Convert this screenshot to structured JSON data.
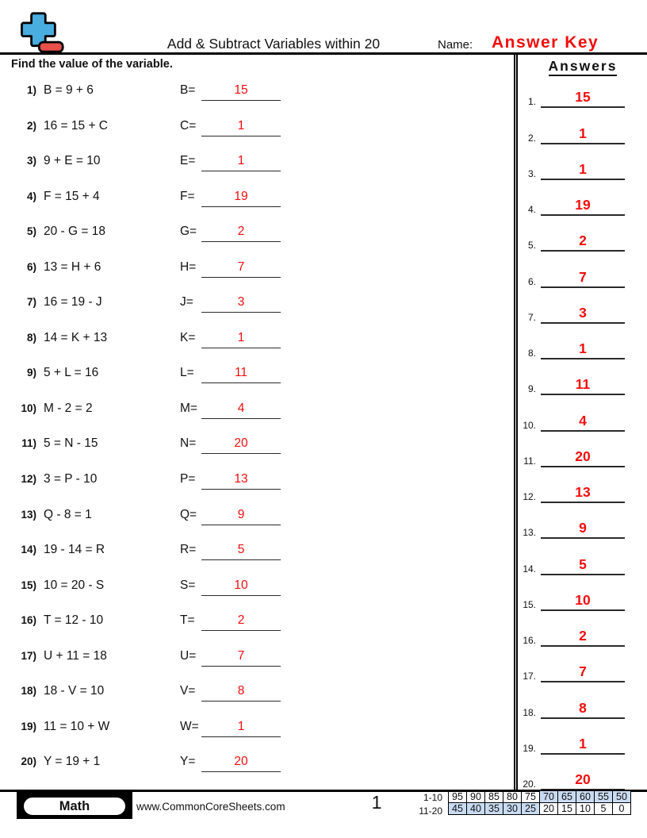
{
  "colors": {
    "answer_red": "#f20d0d",
    "table_shade": "#c8dbf2",
    "logo_blue": "#49ade0",
    "logo_red": "#e8504a"
  },
  "header": {
    "title": "Add & Subtract Variables within 20",
    "name_label": "Name:",
    "answer_key_text": "Answer Key"
  },
  "instruction": "Find the value of the variable.",
  "problems": [
    {
      "num": "1)",
      "equation": "B = 9 + 6",
      "var_label": "B=",
      "answer": "15"
    },
    {
      "num": "2)",
      "equation": "16 = 15 + C",
      "var_label": "C=",
      "answer": "1"
    },
    {
      "num": "3)",
      "equation": "9 + E = 10",
      "var_label": "E=",
      "answer": "1"
    },
    {
      "num": "4)",
      "equation": "F = 15 + 4",
      "var_label": "F=",
      "answer": "19"
    },
    {
      "num": "5)",
      "equation": "20 - G = 18",
      "var_label": "G=",
      "answer": "2"
    },
    {
      "num": "6)",
      "equation": "13 = H + 6",
      "var_label": "H=",
      "answer": "7"
    },
    {
      "num": "7)",
      "equation": "16 = 19 - J",
      "var_label": "J=",
      "answer": "3"
    },
    {
      "num": "8)",
      "equation": "14 = K + 13",
      "var_label": "K=",
      "answer": "1"
    },
    {
      "num": "9)",
      "equation": "5 + L = 16",
      "var_label": "L=",
      "answer": "11"
    },
    {
      "num": "10)",
      "equation": "M - 2 = 2",
      "var_label": "M=",
      "answer": "4"
    },
    {
      "num": "11)",
      "equation": "5 = N - 15",
      "var_label": "N=",
      "answer": "20"
    },
    {
      "num": "12)",
      "equation": "3 = P - 10",
      "var_label": "P=",
      "answer": "13"
    },
    {
      "num": "13)",
      "equation": "Q - 8 = 1",
      "var_label": "Q=",
      "answer": "9"
    },
    {
      "num": "14)",
      "equation": "19 - 14 = R",
      "var_label": "R=",
      "answer": "5"
    },
    {
      "num": "15)",
      "equation": "10 = 20 - S",
      "var_label": "S=",
      "answer": "10"
    },
    {
      "num": "16)",
      "equation": "T = 12 - 10",
      "var_label": "T=",
      "answer": "2"
    },
    {
      "num": "17)",
      "equation": "U + 11 = 18",
      "var_label": "U=",
      "answer": "7"
    },
    {
      "num": "18)",
      "equation": "18 - V = 10",
      "var_label": "V=",
      "answer": "8"
    },
    {
      "num": "19)",
      "equation": "11 = 10 + W",
      "var_label": "W=",
      "answer": "1"
    },
    {
      "num": "20)",
      "equation": "Y = 19 + 1",
      "var_label": "Y=",
      "answer": "20"
    }
  ],
  "answers_panel": {
    "heading": "Answers",
    "items": [
      {
        "num": "1.",
        "value": "15"
      },
      {
        "num": "2.",
        "value": "1"
      },
      {
        "num": "3.",
        "value": "1"
      },
      {
        "num": "4.",
        "value": "19"
      },
      {
        "num": "5.",
        "value": "2"
      },
      {
        "num": "6.",
        "value": "7"
      },
      {
        "num": "7.",
        "value": "3"
      },
      {
        "num": "8.",
        "value": "1"
      },
      {
        "num": "9.",
        "value": "11"
      },
      {
        "num": "10.",
        "value": "4"
      },
      {
        "num": "11.",
        "value": "20"
      },
      {
        "num": "12.",
        "value": "13"
      },
      {
        "num": "13.",
        "value": "9"
      },
      {
        "num": "14.",
        "value": "5"
      },
      {
        "num": "15.",
        "value": "10"
      },
      {
        "num": "16.",
        "value": "2"
      },
      {
        "num": "17.",
        "value": "7"
      },
      {
        "num": "18.",
        "value": "8"
      },
      {
        "num": "19.",
        "value": "1"
      },
      {
        "num": "20.",
        "value": "20"
      }
    ]
  },
  "footer": {
    "subject_badge": "Math",
    "website": "www.CommonCoreSheets.com",
    "page_number": "1",
    "score_table": {
      "rows": [
        {
          "label": "1-10",
          "cells": [
            {
              "v": "95",
              "shaded": false
            },
            {
              "v": "90",
              "shaded": false
            },
            {
              "v": "85",
              "shaded": false
            },
            {
              "v": "80",
              "shaded": false
            },
            {
              "v": "75",
              "shaded": false
            },
            {
              "v": "70",
              "shaded": true
            },
            {
              "v": "65",
              "shaded": true
            },
            {
              "v": "60",
              "shaded": true
            },
            {
              "v": "55",
              "shaded": true
            },
            {
              "v": "50",
              "shaded": true
            }
          ]
        },
        {
          "label": "11-20",
          "cells": [
            {
              "v": "45",
              "shaded": true
            },
            {
              "v": "40",
              "shaded": true
            },
            {
              "v": "35",
              "shaded": true
            },
            {
              "v": "30",
              "shaded": true
            },
            {
              "v": "25",
              "shaded": true
            },
            {
              "v": "20",
              "shaded": false
            },
            {
              "v": "15",
              "shaded": false
            },
            {
              "v": "10",
              "shaded": false
            },
            {
              "v": "5",
              "shaded": false
            },
            {
              "v": "0",
              "shaded": false
            }
          ]
        }
      ]
    }
  }
}
